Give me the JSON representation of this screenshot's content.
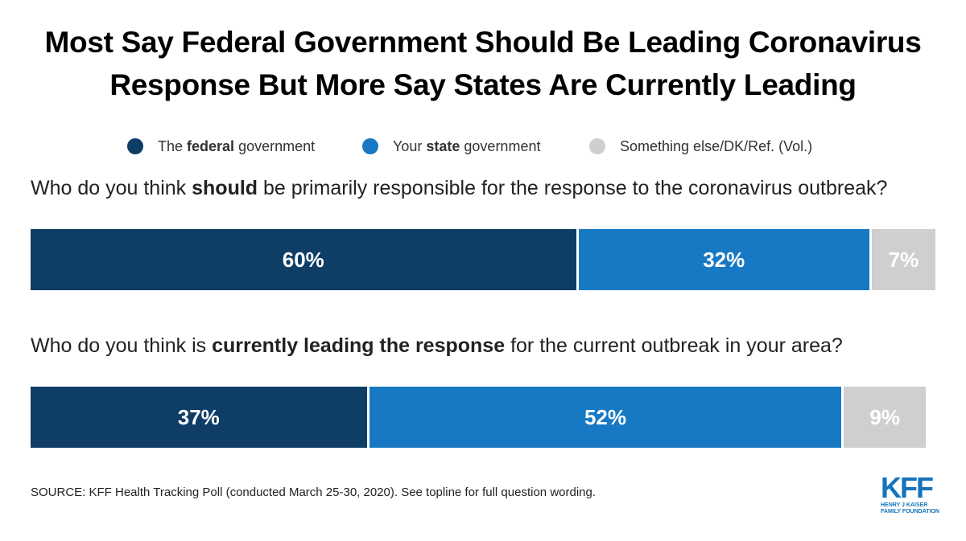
{
  "title": {
    "line1": "Most Say Federal Government Should Be Leading Coronavirus",
    "line2": "Response But More Say States Are Currently Leading"
  },
  "legend": [
    {
      "pre": "The ",
      "bold": "federal",
      "post": " government",
      "color": "#0e3d66"
    },
    {
      "pre": "Your ",
      "bold": "state",
      "post": " government",
      "color": "#1779c4"
    },
    {
      "pre": "",
      "bold": "",
      "post": "Something else/DK/Ref. (Vol.)",
      "color": "#cfcfcf"
    }
  ],
  "chart_data": {
    "type": "bar",
    "orientation": "horizontal-stacked",
    "title": "Most Say Federal Government Should Be Leading Coronavirus Response But More Say States Are Currently Leading",
    "series": [
      {
        "name": "The federal government",
        "color": "#0e3d66",
        "values": [
          60,
          37
        ]
      },
      {
        "name": "Your state government",
        "color": "#1779c4",
        "values": [
          32,
          52
        ]
      },
      {
        "name": "Something else/DK/Ref. (Vol.)",
        "color": "#cfcfcf",
        "values": [
          7,
          9
        ]
      }
    ],
    "categories": [
      "Who do you think should be primarily responsible for the response to the coronavirus outbreak?",
      "Who do you think is currently leading the response for the current outbreak in your area?"
    ],
    "labels": [
      [
        "60%",
        "32%",
        "7%"
      ],
      [
        "37%",
        "52%",
        "9%"
      ]
    ],
    "unit": "%"
  },
  "questions": [
    {
      "pre": "Who do you think ",
      "bold": "should",
      "post": " be primarily responsible for the response to the coronavirus outbreak?"
    },
    {
      "pre": "Who do you think is ",
      "bold": "currently leading the response",
      "post": " for the current outbreak in your area?"
    }
  ],
  "source": "SOURCE: KFF Health Tracking Poll (conducted March 25-30, 2020). See topline for full question wording.",
  "logo": {
    "mark": "KFF",
    "line1": "HENRY J KAISER",
    "line2": "FAMILY FOUNDATION"
  }
}
